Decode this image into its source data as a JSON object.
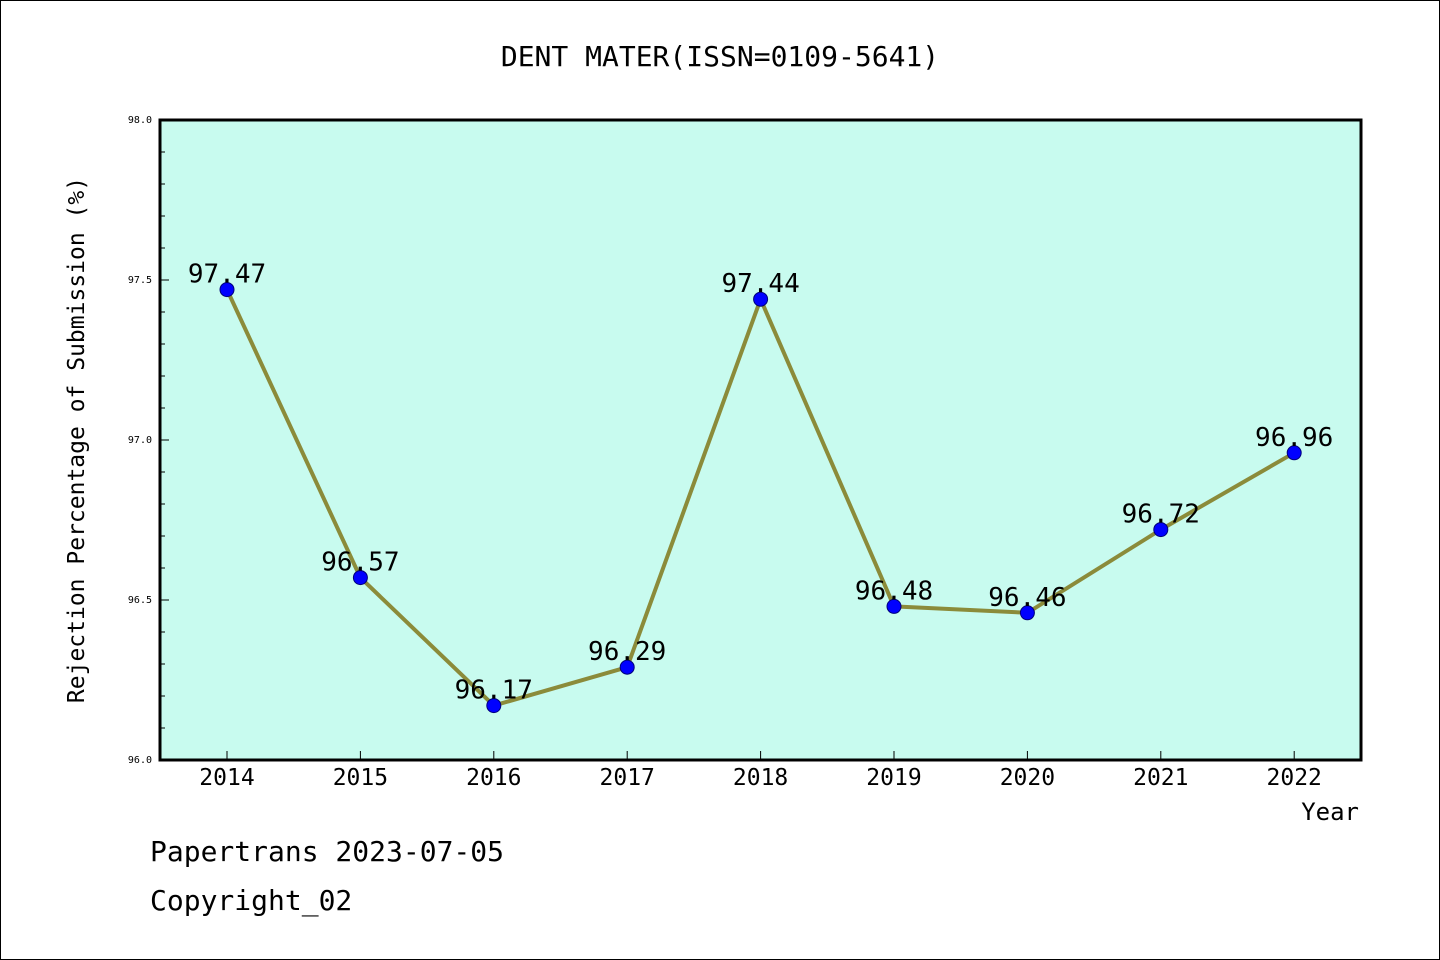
{
  "chart_data": {
    "type": "line",
    "title": "DENT MATER(ISSN=0109-5641)",
    "xlabel": "Year",
    "ylabel": "Rejection Percentage of Submission (%)",
    "categories": [
      "2014",
      "2015",
      "2016",
      "2017",
      "2018",
      "2019",
      "2020",
      "2021",
      "2022"
    ],
    "series": [
      {
        "values": [
          97.47,
          96.57,
          96.17,
          96.29,
          97.44,
          96.48,
          96.46,
          96.72,
          96.96
        ],
        "labels": [
          "97.47",
          "96.57",
          "96.17",
          "96.29",
          "97.44",
          "96.48",
          "96.46",
          "96.72",
          "96.96"
        ]
      }
    ],
    "ylim": [
      96.0,
      98.0
    ],
    "yticks": [
      "96.0",
      "96.5",
      "97.0",
      "97.5",
      "98.0"
    ],
    "grid": false,
    "colors": {
      "plot_background": "#c8fbef",
      "line": "#8b8b3a",
      "marker": "#0000ff",
      "marker_edge": "#00007a"
    }
  },
  "footer": {
    "date_text": "Papertrans 2023-07-05",
    "copyright_text": "Copyright_02"
  }
}
